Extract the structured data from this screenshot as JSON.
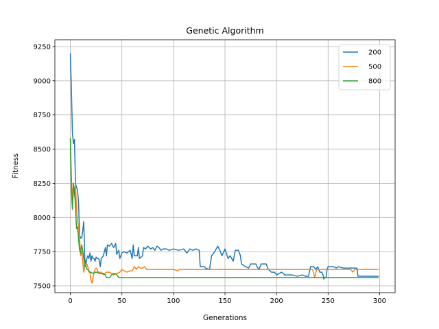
{
  "chart_data": {
    "type": "line",
    "title": "Genetic Algorithm",
    "xlabel": "Generations",
    "ylabel": "Fitness",
    "xlim": [
      -15,
      315
    ],
    "ylim": [
      7450,
      9300
    ],
    "xticks": [
      0,
      50,
      100,
      150,
      200,
      250,
      300
    ],
    "yticks": [
      7500,
      7750,
      8000,
      8250,
      8500,
      8750,
      9000,
      9250
    ],
    "grid": true,
    "legend_position": "top-right",
    "series": [
      {
        "name": "200",
        "color": "#1f77b4",
        "points": [
          [
            0,
            9200
          ],
          [
            1,
            8950
          ],
          [
            2,
            8620
          ],
          [
            3,
            8540
          ],
          [
            4,
            8570
          ],
          [
            5,
            8250
          ],
          [
            6,
            8220
          ],
          [
            7,
            8200
          ],
          [
            8,
            8100
          ],
          [
            9,
            7870
          ],
          [
            10,
            7850
          ],
          [
            11,
            7850
          ],
          [
            12,
            7900
          ],
          [
            13,
            7970
          ],
          [
            14,
            7700
          ],
          [
            15,
            7650
          ],
          [
            16,
            7700
          ],
          [
            17,
            7720
          ],
          [
            18,
            7700
          ],
          [
            19,
            7740
          ],
          [
            20,
            7680
          ],
          [
            21,
            7720
          ],
          [
            22,
            7700
          ],
          [
            23,
            7700
          ],
          [
            24,
            7680
          ],
          [
            25,
            7710
          ],
          [
            26,
            7700
          ],
          [
            27,
            7700
          ],
          [
            28,
            7690
          ],
          [
            29,
            7640
          ],
          [
            30,
            7700
          ],
          [
            32,
            7720
          ],
          [
            34,
            7780
          ],
          [
            35,
            7720
          ],
          [
            36,
            7800
          ],
          [
            38,
            7790
          ],
          [
            40,
            7810
          ],
          [
            42,
            7780
          ],
          [
            44,
            7810
          ],
          [
            45,
            7730
          ],
          [
            47,
            7760
          ],
          [
            48,
            7700
          ],
          [
            50,
            7740
          ],
          [
            52,
            7750
          ],
          [
            55,
            7740
          ],
          [
            58,
            7760
          ],
          [
            60,
            7700
          ],
          [
            61,
            7800
          ],
          [
            62,
            7720
          ],
          [
            65,
            7720
          ],
          [
            66,
            7780
          ],
          [
            67,
            7700
          ],
          [
            70,
            7720
          ],
          [
            71,
            7780
          ],
          [
            73,
            7770
          ],
          [
            75,
            7790
          ],
          [
            78,
            7770
          ],
          [
            80,
            7780
          ],
          [
            82,
            7760
          ],
          [
            84,
            7790
          ],
          [
            86,
            7780
          ],
          [
            88,
            7760
          ],
          [
            90,
            7770
          ],
          [
            93,
            7770
          ],
          [
            96,
            7760
          ],
          [
            100,
            7770
          ],
          [
            105,
            7760
          ],
          [
            110,
            7770
          ],
          [
            113,
            7740
          ],
          [
            116,
            7770
          ],
          [
            119,
            7760
          ],
          [
            122,
            7770
          ],
          [
            125,
            7760
          ],
          [
            126,
            7640
          ],
          [
            130,
            7640
          ],
          [
            131,
            7630
          ],
          [
            135,
            7620
          ],
          [
            137,
            7720
          ],
          [
            140,
            7750
          ],
          [
            143,
            7790
          ],
          [
            145,
            7760
          ],
          [
            147,
            7720
          ],
          [
            150,
            7770
          ],
          [
            153,
            7700
          ],
          [
            155,
            7720
          ],
          [
            158,
            7680
          ],
          [
            160,
            7760
          ],
          [
            163,
            7760
          ],
          [
            165,
            7720
          ],
          [
            166,
            7660
          ],
          [
            170,
            7640
          ],
          [
            173,
            7630
          ],
          [
            175,
            7660
          ],
          [
            180,
            7660
          ],
          [
            181,
            7640
          ],
          [
            183,
            7620
          ],
          [
            185,
            7660
          ],
          [
            190,
            7660
          ],
          [
            192,
            7620
          ],
          [
            195,
            7600
          ],
          [
            198,
            7600
          ],
          [
            200,
            7580
          ],
          [
            205,
            7600
          ],
          [
            208,
            7580
          ],
          [
            210,
            7580
          ],
          [
            215,
            7580
          ],
          [
            220,
            7570
          ],
          [
            225,
            7580
          ],
          [
            228,
            7570
          ],
          [
            231,
            7570
          ],
          [
            233,
            7640
          ],
          [
            236,
            7640
          ],
          [
            238,
            7620
          ],
          [
            240,
            7640
          ],
          [
            242,
            7600
          ],
          [
            244,
            7600
          ],
          [
            246,
            7560
          ],
          [
            248,
            7560
          ],
          [
            249,
            7620
          ],
          [
            250,
            7640
          ],
          [
            255,
            7640
          ],
          [
            258,
            7630
          ],
          [
            260,
            7640
          ],
          [
            265,
            7630
          ],
          [
            270,
            7630
          ],
          [
            275,
            7630
          ],
          [
            278,
            7630
          ],
          [
            279,
            7570
          ],
          [
            282,
            7570
          ],
          [
            290,
            7570
          ],
          [
            299,
            7570
          ]
        ]
      },
      {
        "name": "500",
        "color": "#ff7f0e",
        "points": [
          [
            0,
            8580
          ],
          [
            1,
            8300
          ],
          [
            2,
            8130
          ],
          [
            3,
            8250
          ],
          [
            4,
            8150
          ],
          [
            5,
            8240
          ],
          [
            6,
            8060
          ],
          [
            7,
            7980
          ],
          [
            8,
            7920
          ],
          [
            9,
            7850
          ],
          [
            10,
            7720
          ],
          [
            11,
            7750
          ],
          [
            12,
            7680
          ],
          [
            13,
            7600
          ],
          [
            14,
            7640
          ],
          [
            15,
            7660
          ],
          [
            16,
            7660
          ],
          [
            17,
            7640
          ],
          [
            18,
            7600
          ],
          [
            19,
            7600
          ],
          [
            20,
            7540
          ],
          [
            21,
            7520
          ],
          [
            22,
            7560
          ],
          [
            23,
            7600
          ],
          [
            24,
            7620
          ],
          [
            25,
            7630
          ],
          [
            26,
            7620
          ],
          [
            27,
            7600
          ],
          [
            28,
            7600
          ],
          [
            30,
            7600
          ],
          [
            32,
            7580
          ],
          [
            35,
            7600
          ],
          [
            38,
            7600
          ],
          [
            40,
            7590
          ],
          [
            42,
            7580
          ],
          [
            45,
            7590
          ],
          [
            48,
            7600
          ],
          [
            50,
            7620
          ],
          [
            52,
            7610
          ],
          [
            55,
            7600
          ],
          [
            58,
            7610
          ],
          [
            60,
            7610
          ],
          [
            62,
            7640
          ],
          [
            64,
            7620
          ],
          [
            66,
            7640
          ],
          [
            68,
            7630
          ],
          [
            70,
            7630
          ],
          [
            72,
            7640
          ],
          [
            74,
            7620
          ],
          [
            80,
            7620
          ],
          [
            90,
            7620
          ],
          [
            100,
            7620
          ],
          [
            104,
            7610
          ],
          [
            106,
            7620
          ],
          [
            120,
            7620
          ],
          [
            140,
            7620
          ],
          [
            160,
            7620
          ],
          [
            180,
            7620
          ],
          [
            200,
            7620
          ],
          [
            220,
            7620
          ],
          [
            235,
            7620
          ],
          [
            237,
            7560
          ],
          [
            239,
            7620
          ],
          [
            260,
            7620
          ],
          [
            272,
            7620
          ],
          [
            274,
            7600
          ],
          [
            276,
            7620
          ],
          [
            290,
            7620
          ],
          [
            299,
            7620
          ]
        ]
      },
      {
        "name": "800",
        "color": "#2ca02c",
        "points": [
          [
            0,
            8580
          ],
          [
            1,
            8200
          ],
          [
            2,
            8060
          ],
          [
            3,
            8250
          ],
          [
            4,
            8200
          ],
          [
            5,
            8080
          ],
          [
            6,
            7920
          ],
          [
            7,
            7930
          ],
          [
            8,
            7840
          ],
          [
            9,
            7760
          ],
          [
            10,
            7740
          ],
          [
            11,
            7800
          ],
          [
            12,
            7760
          ],
          [
            13,
            7700
          ],
          [
            14,
            7640
          ],
          [
            15,
            7650
          ],
          [
            16,
            7620
          ],
          [
            17,
            7620
          ],
          [
            18,
            7610
          ],
          [
            19,
            7600
          ],
          [
            20,
            7600
          ],
          [
            22,
            7590
          ],
          [
            24,
            7600
          ],
          [
            26,
            7600
          ],
          [
            28,
            7590
          ],
          [
            30,
            7590
          ],
          [
            32,
            7590
          ],
          [
            34,
            7580
          ],
          [
            35,
            7560
          ],
          [
            38,
            7560
          ],
          [
            40,
            7580
          ],
          [
            42,
            7590
          ],
          [
            44,
            7590
          ],
          [
            45,
            7580
          ],
          [
            47,
            7560
          ],
          [
            50,
            7560
          ],
          [
            60,
            7560
          ],
          [
            80,
            7560
          ],
          [
            100,
            7560
          ],
          [
            120,
            7560
          ],
          [
            140,
            7560
          ],
          [
            160,
            7560
          ],
          [
            180,
            7560
          ],
          [
            200,
            7560
          ],
          [
            220,
            7560
          ],
          [
            245,
            7560
          ],
          [
            246,
            7550
          ],
          [
            247,
            7560
          ],
          [
            270,
            7560
          ],
          [
            299,
            7560
          ]
        ]
      }
    ]
  }
}
